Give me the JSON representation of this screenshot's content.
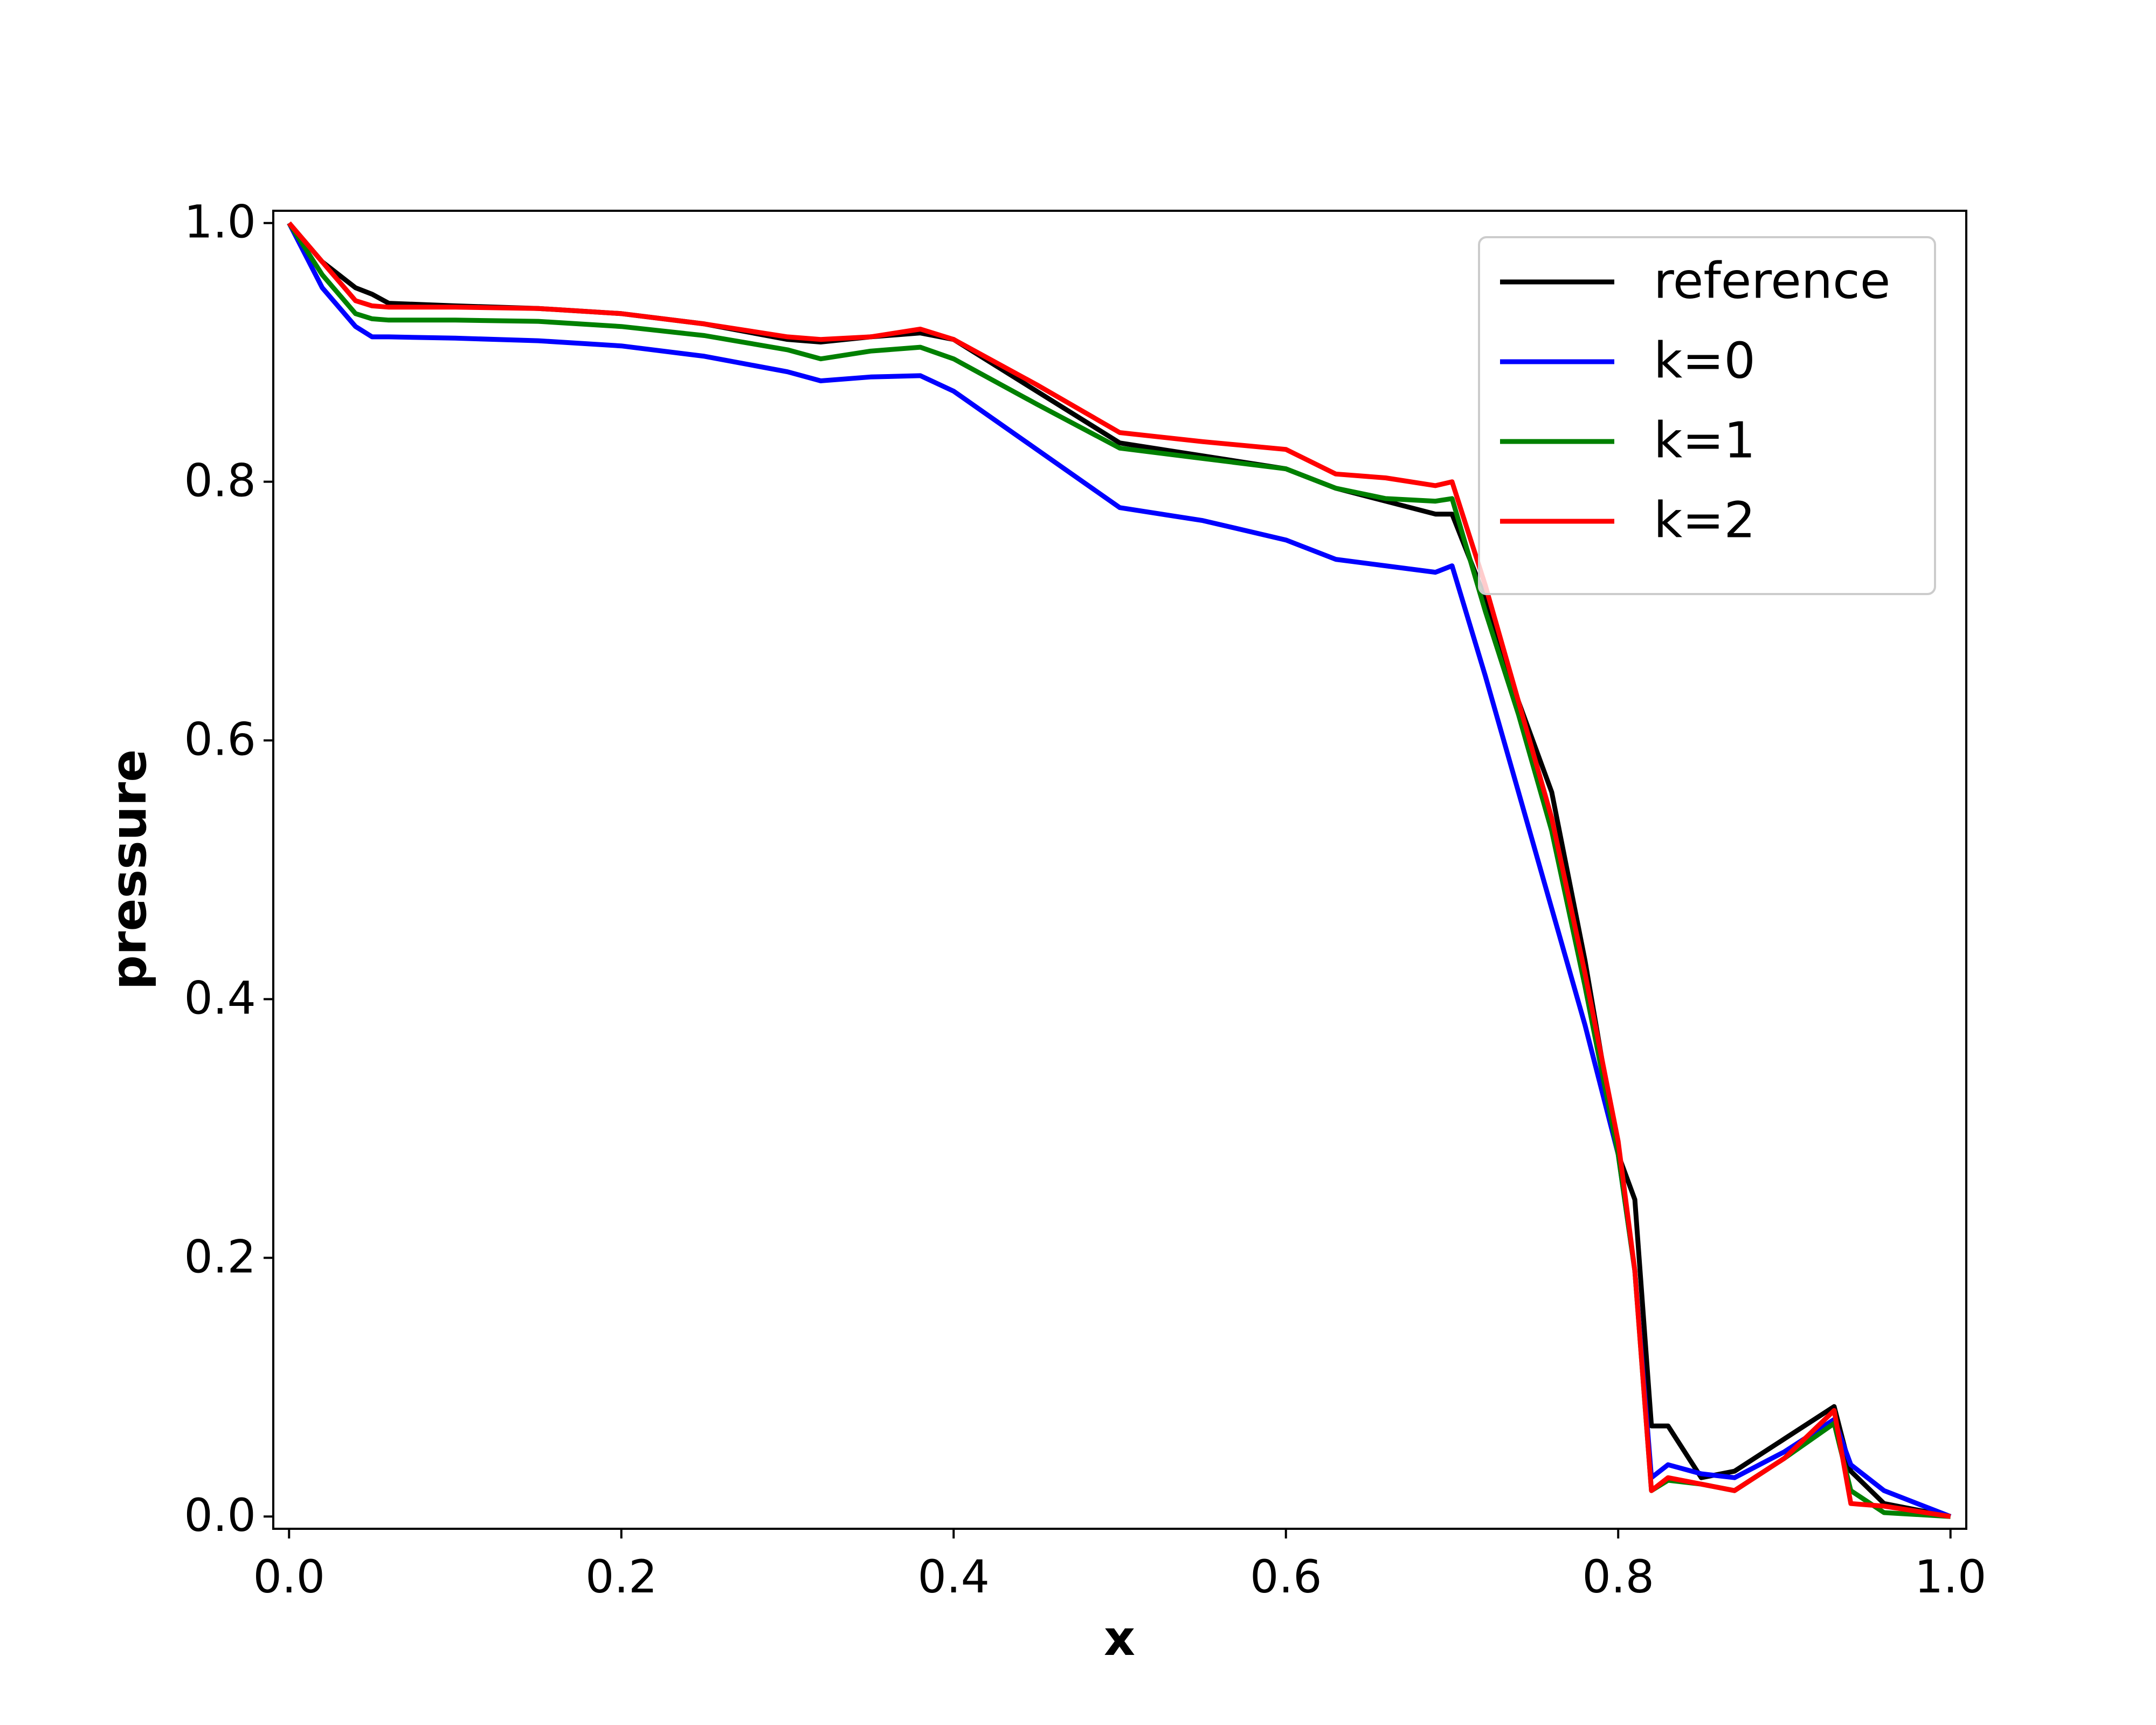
{
  "chart_data": {
    "type": "line",
    "x_label": "x",
    "y_label": "pressure",
    "x": [
      0,
      0.02,
      0.04,
      0.05,
      0.06,
      0.1,
      0.15,
      0.2,
      0.25,
      0.3,
      0.32,
      0.35,
      0.38,
      0.4,
      0.45,
      0.5,
      0.55,
      0.6,
      0.63,
      0.66,
      0.69,
      0.7,
      0.72,
      0.74,
      0.76,
      0.78,
      0.8,
      0.81,
      0.82,
      0.83,
      0.85,
      0.87,
      0.9,
      0.93,
      0.94,
      0.96,
      1.0
    ],
    "series": [
      {
        "name": "reference",
        "color": "#000000",
        "values": [
          1.0,
          0.97,
          0.95,
          0.945,
          0.938,
          0.936,
          0.934,
          0.93,
          0.922,
          0.91,
          0.908,
          0.912,
          0.915,
          0.91,
          0.87,
          0.83,
          0.82,
          0.81,
          0.795,
          0.785,
          0.775,
          0.775,
          0.71,
          0.63,
          0.56,
          0.43,
          0.28,
          0.245,
          0.07,
          0.07,
          0.03,
          0.035,
          0.06,
          0.085,
          0.035,
          0.01,
          0.0
        ]
      },
      {
        "name": "k=0",
        "color": "#0000ff",
        "values": [
          1.0,
          0.95,
          0.92,
          0.912,
          0.912,
          0.911,
          0.909,
          0.905,
          0.897,
          0.885,
          0.878,
          0.881,
          0.882,
          0.87,
          0.825,
          0.78,
          0.77,
          0.755,
          0.74,
          0.735,
          0.73,
          0.735,
          0.65,
          0.56,
          0.47,
          0.38,
          0.28,
          0.19,
          0.03,
          0.04,
          0.033,
          0.03,
          0.05,
          0.075,
          0.04,
          0.02,
          0.0
        ]
      },
      {
        "name": "k=1",
        "color": "#008000",
        "values": [
          1.0,
          0.96,
          0.93,
          0.926,
          0.925,
          0.925,
          0.924,
          0.92,
          0.913,
          0.902,
          0.895,
          0.901,
          0.904,
          0.895,
          0.86,
          0.826,
          0.818,
          0.81,
          0.795,
          0.787,
          0.785,
          0.787,
          0.7,
          0.62,
          0.53,
          0.41,
          0.28,
          0.19,
          0.02,
          0.028,
          0.025,
          0.02,
          0.045,
          0.072,
          0.02,
          0.003,
          0.0
        ]
      },
      {
        "name": "k=2",
        "color": "#ff0000",
        "values": [
          1.0,
          0.97,
          0.94,
          0.936,
          0.935,
          0.935,
          0.934,
          0.93,
          0.922,
          0.912,
          0.91,
          0.912,
          0.918,
          0.91,
          0.875,
          0.838,
          0.831,
          0.825,
          0.806,
          0.803,
          0.797,
          0.8,
          0.72,
          0.63,
          0.54,
          0.42,
          0.29,
          0.19,
          0.02,
          0.03,
          0.025,
          0.02,
          0.045,
          0.082,
          0.01,
          0.008,
          0.0
        ]
      }
    ],
    "xlim": [
      -0.0095,
      1.0095
    ],
    "ylim": [
      -0.0095,
      1.0095
    ],
    "xticks": [
      {
        "value": 0,
        "label": "0.0"
      },
      0.2,
      0.4,
      0.6,
      0.8,
      {
        "value": 1,
        "label": "1.0"
      }
    ],
    "yticks": [
      {
        "value": 0,
        "label": "0.0"
      },
      0.2,
      0.4,
      0.6,
      0.8,
      {
        "value": 1,
        "label": "1.0"
      }
    ],
    "legend": "upper right",
    "grid": false
  }
}
